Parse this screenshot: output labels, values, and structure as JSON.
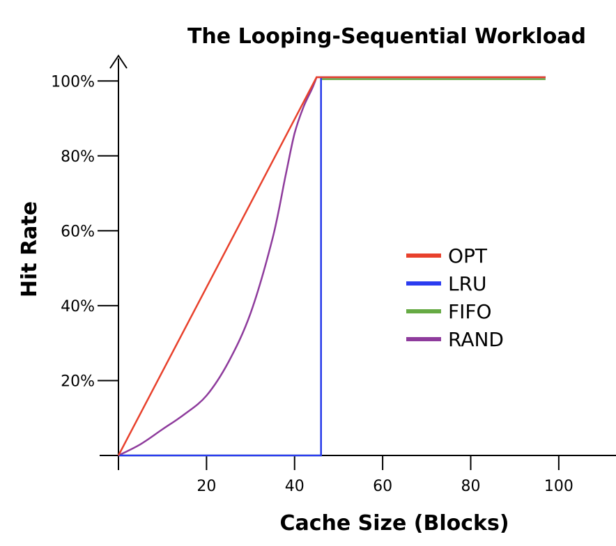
{
  "chart_data": {
    "type": "line",
    "title": "The Looping-Sequential Workload",
    "xlabel": "Cache Size (Blocks)",
    "ylabel": "Hit Rate",
    "xlim": [
      0,
      113
    ],
    "ylim": [
      0,
      106
    ],
    "x_ticks": [
      20,
      40,
      60,
      80,
      100
    ],
    "x_tick_labels": [
      "20",
      "40",
      "60",
      "80",
      "100"
    ],
    "y_ticks": [
      20,
      40,
      60,
      80,
      100
    ],
    "y_tick_labels": [
      "20%",
      "40%",
      "60%",
      "80%",
      "100%"
    ],
    "grid": false,
    "legend_position": "center-right",
    "series": [
      {
        "name": "OPT",
        "color": "#e8412c",
        "x": [
          0,
          45,
          97
        ],
        "y": [
          0,
          101,
          101
        ]
      },
      {
        "name": "LRU",
        "color": "#2b3cf0",
        "x": [
          0,
          46,
          46,
          97
        ],
        "y": [
          0,
          0,
          101,
          101
        ]
      },
      {
        "name": "FIFO",
        "color": "#66aa44",
        "x": [
          0,
          46,
          46,
          97
        ],
        "y": [
          0,
          0,
          100.5,
          100.5
        ]
      },
      {
        "name": "RAND",
        "color": "#8e3b9c",
        "x": [
          0,
          5,
          10,
          15,
          20,
          25,
          30,
          35,
          38,
          40,
          42,
          44,
          45,
          97
        ],
        "y": [
          0,
          3,
          7,
          11,
          16,
          25,
          38,
          58,
          75,
          86,
          93,
          98,
          101,
          101
        ]
      }
    ]
  }
}
